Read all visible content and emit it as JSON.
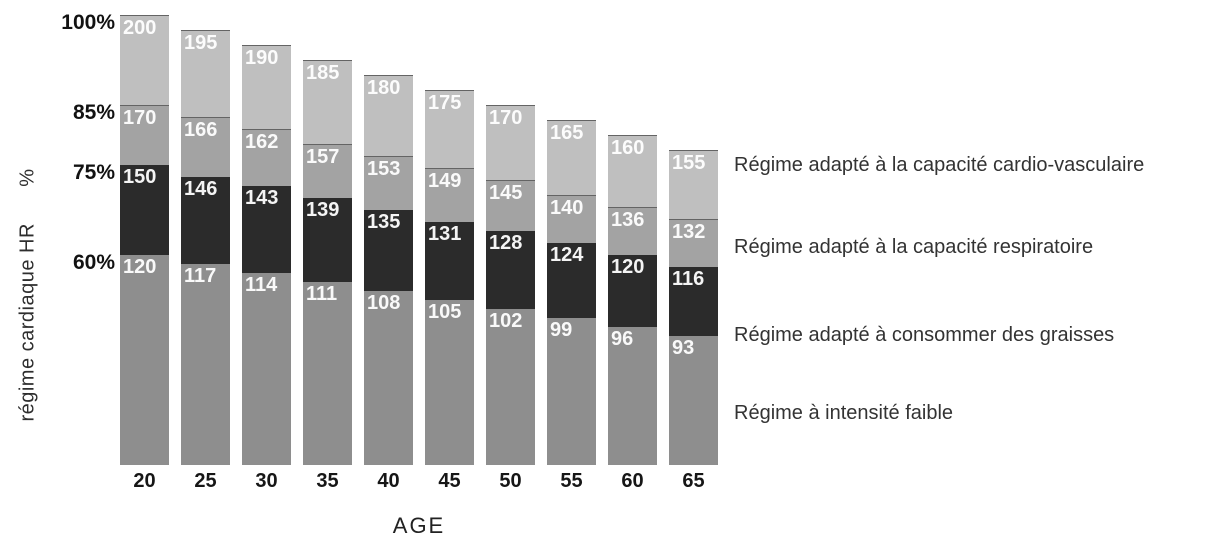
{
  "chart_data": {
    "type": "bar",
    "stacked": true,
    "title": "",
    "xlabel": "AGE",
    "ylabel": "régime cardiaque HR      %",
    "categories": [
      "20",
      "25",
      "30",
      "35",
      "40",
      "45",
      "50",
      "55",
      "60",
      "65"
    ],
    "series": [
      {
        "name": "Régime à intensité faible",
        "color": "#8e8e8e",
        "values": [
          120,
          117,
          114,
          111,
          108,
          105,
          102,
          99,
          96,
          93
        ]
      },
      {
        "name": "Régime adapté à consommer des graisses",
        "color": "#2b2b2b",
        "values": [
          150,
          146,
          143,
          139,
          135,
          131,
          128,
          124,
          120,
          116
        ]
      },
      {
        "name": "Régime adapté à la capacité respiratoire",
        "color": "#a3a3a3",
        "values": [
          170,
          166,
          162,
          157,
          153,
          149,
          145,
          140,
          136,
          132
        ]
      },
      {
        "name": "Régime adapté à la capacité cardio-vasculaire",
        "color": "#bfbfbf",
        "values": [
          200,
          195,
          190,
          185,
          180,
          175,
          170,
          165,
          160,
          155
        ]
      }
    ],
    "y_ticks": [
      {
        "label": "100%",
        "value": 200
      },
      {
        "label": "85%",
        "value": 170
      },
      {
        "label": "75%",
        "value": 150
      },
      {
        "label": "60%",
        "value": 120
      }
    ],
    "ylim": [
      50,
      205
    ],
    "grid": false,
    "legend_position": "right",
    "value_labels": "each segment labeled with its top heart-rate value in bpm"
  }
}
